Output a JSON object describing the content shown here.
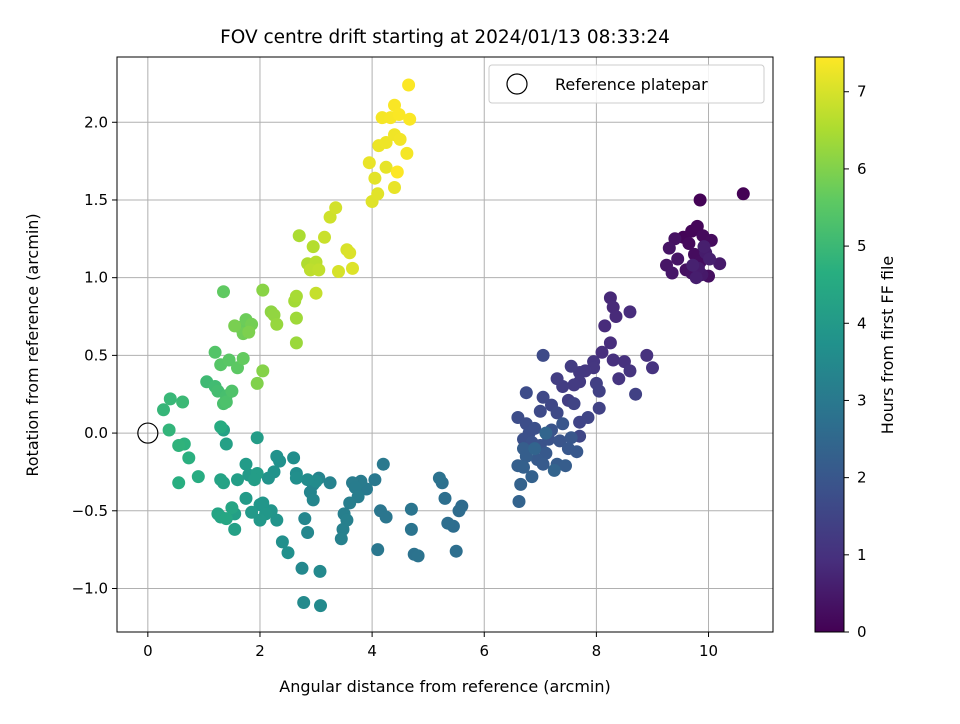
{
  "chart_data": {
    "type": "scatter",
    "title": "FOV centre drift starting at 2024/01/13 08:33:24",
    "xlabel": "Angular distance from reference (arcmin)",
    "ylabel": "Rotation from reference (arcmin)",
    "xlim": [
      -0.55,
      11.15
    ],
    "ylim": [
      -1.28,
      2.42
    ],
    "x_ticks": [
      0,
      2,
      4,
      6,
      8,
      10
    ],
    "y_ticks": [
      -1.0,
      -0.5,
      0.0,
      0.5,
      1.0,
      1.5,
      2.0
    ],
    "grid": true,
    "legend": {
      "placement": "top-right",
      "entries": [
        "Reference platepar"
      ]
    },
    "reference_point": {
      "x": 0,
      "y": 0,
      "label": "Reference platepar"
    },
    "colorbar": {
      "label": "Hours from first FF file",
      "range": [
        0,
        7.45
      ],
      "ticks": [
        0,
        1,
        2,
        3,
        4,
        5,
        6,
        7
      ],
      "colormap": "viridis"
    },
    "points": [
      [
        10.62,
        1.54,
        0.02
      ],
      [
        9.85,
        1.5,
        0.05
      ],
      [
        9.55,
        1.26,
        0.08
      ],
      [
        9.7,
        1.3,
        0.1
      ],
      [
        9.8,
        1.33,
        0.12
      ],
      [
        9.65,
        1.22,
        0.15
      ],
      [
        9.9,
        1.27,
        0.18
      ],
      [
        10.05,
        1.24,
        0.2
      ],
      [
        9.75,
        1.15,
        0.22
      ],
      [
        9.85,
        1.1,
        0.25
      ],
      [
        10.0,
        1.01,
        0.28
      ],
      [
        9.6,
        1.05,
        0.3
      ],
      [
        9.7,
        1.03,
        0.33
      ],
      [
        9.4,
        1.25,
        0.35
      ],
      [
        9.3,
        1.19,
        0.38
      ],
      [
        9.45,
        1.12,
        0.4
      ],
      [
        9.25,
        1.08,
        0.42
      ],
      [
        9.35,
        1.03,
        0.45
      ],
      [
        9.88,
        1.02,
        0.48
      ],
      [
        10.2,
        1.09,
        0.5
      ],
      [
        9.82,
        1.06,
        0.52
      ],
      [
        9.95,
        1.16,
        0.55
      ],
      [
        9.78,
        1.0,
        0.58
      ],
      [
        9.92,
        1.2,
        0.6
      ],
      [
        10.02,
        1.12,
        0.62
      ],
      [
        9.72,
        1.08,
        0.64
      ],
      [
        8.25,
        0.87,
        0.8
      ],
      [
        8.3,
        0.81,
        0.82
      ],
      [
        8.35,
        0.75,
        0.85
      ],
      [
        8.15,
        0.69,
        0.88
      ],
      [
        8.6,
        0.78,
        0.9
      ],
      [
        8.25,
        0.58,
        0.92
      ],
      [
        8.1,
        0.52,
        0.95
      ],
      [
        8.3,
        0.47,
        0.98
      ],
      [
        8.5,
        0.46,
        1.0
      ],
      [
        8.9,
        0.5,
        1.02
      ],
      [
        9.0,
        0.42,
        1.05
      ],
      [
        8.6,
        0.4,
        1.08
      ],
      [
        8.4,
        0.35,
        1.1
      ],
      [
        7.95,
        0.46,
        1.12
      ],
      [
        7.95,
        0.42,
        1.15
      ],
      [
        7.8,
        0.4,
        1.18
      ],
      [
        7.7,
        0.39,
        1.2
      ],
      [
        7.7,
        0.33,
        1.22
      ],
      [
        7.6,
        0.31,
        1.25
      ],
      [
        7.55,
        0.43,
        1.28
      ],
      [
        7.4,
        0.3,
        1.3
      ],
      [
        7.3,
        0.35,
        1.32
      ],
      [
        7.5,
        0.21,
        1.35
      ],
      [
        8.0,
        0.32,
        1.38
      ],
      [
        8.05,
        0.27,
        1.4
      ],
      [
        8.7,
        0.25,
        1.42
      ],
      [
        8.05,
        0.16,
        1.45
      ],
      [
        7.6,
        0.19,
        1.48
      ],
      [
        7.7,
        0.07,
        1.5
      ],
      [
        7.85,
        0.1,
        1.52
      ],
      [
        7.7,
        -0.02,
        1.55
      ],
      [
        7.2,
        0.18,
        1.58
      ],
      [
        7.05,
        0.23,
        1.6
      ],
      [
        7.3,
        0.13,
        1.62
      ],
      [
        7.0,
        0.14,
        1.65
      ],
      [
        7.05,
        0.5,
        1.68
      ],
      [
        6.75,
        0.26,
        1.7
      ],
      [
        6.6,
        0.1,
        1.72
      ],
      [
        6.75,
        0.06,
        1.75
      ],
      [
        6.8,
        0.0,
        1.78
      ],
      [
        6.9,
        0.03,
        1.8
      ],
      [
        6.7,
        -0.04,
        1.82
      ],
      [
        6.85,
        -0.06,
        1.85
      ],
      [
        7.0,
        -0.08,
        1.88
      ],
      [
        7.15,
        -0.04,
        1.9
      ],
      [
        7.2,
        0.02,
        1.92
      ],
      [
        7.35,
        -0.05,
        1.95
      ],
      [
        7.4,
        0.06,
        1.98
      ],
      [
        7.55,
        -0.03,
        2.0
      ],
      [
        7.5,
        -0.1,
        2.02
      ],
      [
        7.65,
        -0.12,
        2.05
      ],
      [
        7.1,
        -0.13,
        2.08
      ],
      [
        6.95,
        -0.17,
        2.1
      ],
      [
        7.05,
        -0.2,
        2.12
      ],
      [
        7.3,
        -0.2,
        2.15
      ],
      [
        7.45,
        -0.21,
        2.18
      ],
      [
        6.7,
        -0.1,
        2.2
      ],
      [
        6.75,
        -0.15,
        2.22
      ],
      [
        6.6,
        -0.21,
        2.25
      ],
      [
        6.7,
        -0.22,
        2.28
      ],
      [
        6.85,
        -0.28,
        2.3
      ],
      [
        6.65,
        -0.33,
        2.32
      ],
      [
        6.62,
        -0.44,
        2.35
      ],
      [
        7.25,
        -0.24,
        2.38
      ],
      [
        6.9,
        -0.1,
        2.4
      ],
      [
        7.1,
        0.0,
        2.42
      ],
      [
        5.6,
        -0.47,
        2.6
      ],
      [
        5.55,
        -0.5,
        2.62
      ],
      [
        5.45,
        -0.6,
        2.65
      ],
      [
        5.35,
        -0.58,
        2.68
      ],
      [
        5.5,
        -0.76,
        2.7
      ],
      [
        5.3,
        -0.42,
        2.72
      ],
      [
        5.25,
        -0.32,
        2.75
      ],
      [
        5.2,
        -0.29,
        2.78
      ],
      [
        4.75,
        -0.78,
        2.8
      ],
      [
        4.82,
        -0.79,
        2.82
      ],
      [
        4.7,
        -0.62,
        2.85
      ],
      [
        4.7,
        -0.49,
        2.88
      ],
      [
        4.15,
        -0.5,
        2.9
      ],
      [
        4.25,
        -0.54,
        2.92
      ],
      [
        4.1,
        -0.75,
        2.95
      ],
      [
        4.05,
        -0.3,
        2.98
      ],
      [
        4.2,
        -0.2,
        3.0
      ],
      [
        3.9,
        -0.36,
        3.02
      ],
      [
        3.8,
        -0.31,
        3.05
      ],
      [
        3.65,
        -0.32,
        3.08
      ],
      [
        3.7,
        -0.35,
        3.1
      ],
      [
        3.75,
        -0.41,
        3.12
      ],
      [
        3.6,
        -0.45,
        3.15
      ],
      [
        3.5,
        -0.52,
        3.18
      ],
      [
        3.55,
        -0.56,
        3.2
      ],
      [
        3.48,
        -0.62,
        3.22
      ],
      [
        3.45,
        -0.68,
        3.25
      ],
      [
        3.25,
        -0.32,
        3.28
      ],
      [
        3.05,
        -0.29,
        3.3
      ],
      [
        2.95,
        -0.33,
        3.32
      ],
      [
        2.9,
        -0.38,
        3.35
      ],
      [
        2.95,
        -0.43,
        3.38
      ],
      [
        2.8,
        -0.55,
        3.4
      ],
      [
        2.85,
        -0.64,
        3.42
      ],
      [
        2.75,
        -0.87,
        3.45
      ],
      [
        3.07,
        -0.89,
        3.48
      ],
      [
        2.78,
        -1.09,
        3.5
      ],
      [
        3.08,
        -1.11,
        3.52
      ],
      [
        3.0,
        -0.31,
        3.55
      ],
      [
        2.85,
        -0.3,
        3.58
      ],
      [
        2.65,
        -0.26,
        3.6
      ],
      [
        2.6,
        -0.16,
        3.62
      ],
      [
        2.65,
        -0.29,
        3.65
      ],
      [
        2.4,
        -0.7,
        3.68
      ],
      [
        2.5,
        -0.77,
        3.7
      ],
      [
        2.35,
        -0.18,
        3.72
      ],
      [
        2.3,
        -0.15,
        3.75
      ],
      [
        2.25,
        -0.25,
        3.78
      ],
      [
        2.15,
        -0.29,
        3.8
      ],
      [
        2.3,
        -0.56,
        3.82
      ],
      [
        2.2,
        -0.5,
        3.85
      ],
      [
        2.05,
        -0.45,
        3.88
      ],
      [
        2.0,
        -0.46,
        3.9
      ],
      [
        2.1,
        -0.52,
        3.92
      ],
      [
        2.0,
        -0.56,
        3.95
      ],
      [
        1.85,
        -0.51,
        3.98
      ],
      [
        1.75,
        -0.42,
        4.0
      ],
      [
        1.8,
        -0.27,
        4.02
      ],
      [
        1.75,
        -0.2,
        4.05
      ],
      [
        1.95,
        -0.03,
        4.08
      ],
      [
        1.95,
        -0.26,
        4.1
      ],
      [
        1.9,
        -0.3,
        4.12
      ],
      [
        1.6,
        -0.3,
        4.15
      ],
      [
        1.55,
        -0.52,
        4.18
      ],
      [
        1.55,
        -0.62,
        4.2
      ],
      [
        1.4,
        -0.07,
        4.22
      ],
      [
        1.35,
        0.02,
        4.25
      ],
      [
        1.35,
        -0.32,
        4.28
      ],
      [
        1.3,
        -0.3,
        4.3
      ],
      [
        1.25,
        -0.52,
        4.32
      ],
      [
        1.3,
        -0.54,
        4.35
      ],
      [
        1.5,
        -0.48,
        4.38
      ],
      [
        1.4,
        -0.55,
        4.4
      ],
      [
        1.3,
        0.04,
        4.55
      ],
      [
        0.9,
        -0.28,
        4.6
      ],
      [
        0.55,
        -0.32,
        4.65
      ],
      [
        0.73,
        -0.16,
        4.7
      ],
      [
        0.65,
        -0.07,
        4.75
      ],
      [
        0.55,
        -0.08,
        4.8
      ],
      [
        0.38,
        0.02,
        4.85
      ],
      [
        0.28,
        0.15,
        4.9
      ],
      [
        0.4,
        0.22,
        4.95
      ],
      [
        0.62,
        0.2,
        5.0
      ],
      [
        1.05,
        0.33,
        5.05
      ],
      [
        1.2,
        0.3,
        5.1
      ],
      [
        1.25,
        0.27,
        5.15
      ],
      [
        1.4,
        0.24,
        5.2
      ],
      [
        1.35,
        0.19,
        5.25
      ],
      [
        1.4,
        0.2,
        5.3
      ],
      [
        1.5,
        0.27,
        5.35
      ],
      [
        1.2,
        0.52,
        5.4
      ],
      [
        1.3,
        0.44,
        5.45
      ],
      [
        1.45,
        0.47,
        5.5
      ],
      [
        1.6,
        0.42,
        5.55
      ],
      [
        1.35,
        0.91,
        5.6
      ],
      [
        1.7,
        0.48,
        5.65
      ],
      [
        1.65,
        0.68,
        5.7
      ],
      [
        1.75,
        0.73,
        5.75
      ],
      [
        1.7,
        0.64,
        5.8
      ],
      [
        1.85,
        0.7,
        5.85
      ],
      [
        1.55,
        0.69,
        5.9
      ],
      [
        1.8,
        0.65,
        5.95
      ],
      [
        1.95,
        0.32,
        6.0
      ],
      [
        2.05,
        0.4,
        6.05
      ],
      [
        2.05,
        0.92,
        6.1
      ],
      [
        2.2,
        0.78,
        6.15
      ],
      [
        2.25,
        0.76,
        6.2
      ],
      [
        2.3,
        0.7,
        6.25
      ],
      [
        2.65,
        0.58,
        6.3
      ],
      [
        2.65,
        0.74,
        6.35
      ],
      [
        2.62,
        0.85,
        6.4
      ],
      [
        2.65,
        0.88,
        6.45
      ],
      [
        2.7,
        1.27,
        6.5
      ],
      [
        2.85,
        1.09,
        6.55
      ],
      [
        2.95,
        1.2,
        6.6
      ],
      [
        3.0,
        1.1,
        6.65
      ],
      [
        2.9,
        1.05,
        6.7
      ],
      [
        3.05,
        1.05,
        6.75
      ],
      [
        3.0,
        0.9,
        6.8
      ],
      [
        3.15,
        1.26,
        6.85
      ],
      [
        3.25,
        1.39,
        6.9
      ],
      [
        3.35,
        1.45,
        6.95
      ],
      [
        3.4,
        1.04,
        7.0
      ],
      [
        3.55,
        1.18,
        7.02
      ],
      [
        3.6,
        1.16,
        7.05
      ],
      [
        3.65,
        1.06,
        7.08
      ],
      [
        4.0,
        1.49,
        7.1
      ],
      [
        4.1,
        1.54,
        7.12
      ],
      [
        4.05,
        1.64,
        7.15
      ],
      [
        4.25,
        1.71,
        7.18
      ],
      [
        4.4,
        1.58,
        7.2
      ],
      [
        3.95,
        1.74,
        7.22
      ],
      [
        4.12,
        1.85,
        7.25
      ],
      [
        4.25,
        1.87,
        7.28
      ],
      [
        4.4,
        1.92,
        7.3
      ],
      [
        4.5,
        1.89,
        7.32
      ],
      [
        4.62,
        1.8,
        7.34
      ],
      [
        4.18,
        2.03,
        7.36
      ],
      [
        4.33,
        2.03,
        7.38
      ],
      [
        4.4,
        2.11,
        7.4
      ],
      [
        4.48,
        2.05,
        7.41
      ],
      [
        4.67,
        2.02,
        7.42
      ],
      [
        4.65,
        2.24,
        7.43
      ],
      [
        4.45,
        1.68,
        7.44
      ]
    ]
  }
}
